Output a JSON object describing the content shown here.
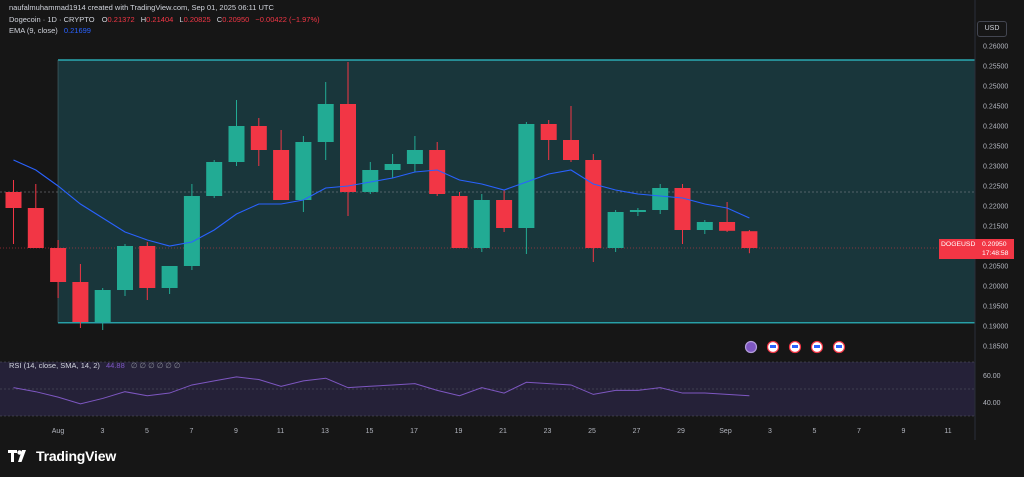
{
  "header": {
    "created_by": "naufalmuhammad1914 created with TradingView.com, Sep 01, 2025 06:11 UTC",
    "symbol": "Dogecoin · 1D · CRYPTO",
    "ohlc": {
      "o_label": "O",
      "o": "0.21372",
      "h_label": "H",
      "h": "0.21404",
      "l_label": "L",
      "l": "0.20825",
      "c_label": "C",
      "c": "0.20950",
      "change": "−0.00422 (−1.97%)"
    },
    "ema_label": "EMA (9, close)",
    "ema_value": "0.21699"
  },
  "currency_button": "USD",
  "price_tag": {
    "symbol": "DOGEUSD",
    "price": "0.20950",
    "countdown": "17:48:58"
  },
  "price_axis": [
    "0.26000",
    "0.25500",
    "0.25000",
    "0.24500",
    "0.24000",
    "0.23500",
    "0.23000",
    "0.22500",
    "0.22000",
    "0.21500",
    "0.21000",
    "0.20500",
    "0.20000",
    "0.19500",
    "0.19000",
    "0.18500"
  ],
  "rsi": {
    "label": "RSI (14, close, SMA, 14, 2)",
    "value": "44.88",
    "placeholders": "∅ ∅ ∅ ∅ ∅ ∅",
    "axis": [
      "60.00",
      "40.00"
    ]
  },
  "time_axis": [
    "Aug",
    "3",
    "5",
    "7",
    "9",
    "11",
    "13",
    "15",
    "17",
    "19",
    "21",
    "23",
    "25",
    "27",
    "29",
    "Sep",
    "3",
    "5",
    "7",
    "9",
    "11"
  ],
  "brand": "TradingView",
  "colors": {
    "up": "#22ab94",
    "down": "#f23645",
    "ema": "#2962ff",
    "channel": "#2ec4cc",
    "rsi": "#7e57c2",
    "background": "#161616",
    "channel_fill": "#1a3c42"
  },
  "chart_data": {
    "type": "candlestick",
    "ylim": [
      0.1835,
      0.262
    ],
    "channel": {
      "upper": 0.2565,
      "lower": 0.1908
    },
    "dashed_level": 0.2235,
    "candles": [
      {
        "x": 0,
        "o": 0.2235,
        "h": 0.2265,
        "l": 0.2105,
        "c": 0.2195
      },
      {
        "x": 1,
        "o": 0.2195,
        "h": 0.2255,
        "l": 0.21,
        "c": 0.2095
      },
      {
        "x": 2,
        "o": 0.2095,
        "h": 0.2115,
        "l": 0.197,
        "c": 0.201
      },
      {
        "x": 3,
        "o": 0.201,
        "h": 0.2055,
        "l": 0.1895,
        "c": 0.191
      },
      {
        "x": 4,
        "o": 0.191,
        "h": 0.1995,
        "l": 0.189,
        "c": 0.199
      },
      {
        "x": 5,
        "o": 0.199,
        "h": 0.2105,
        "l": 0.1975,
        "c": 0.21
      },
      {
        "x": 6,
        "o": 0.21,
        "h": 0.211,
        "l": 0.1965,
        "c": 0.1995
      },
      {
        "x": 7,
        "o": 0.1995,
        "h": 0.205,
        "l": 0.198,
        "c": 0.205
      },
      {
        "x": 8,
        "o": 0.205,
        "h": 0.2255,
        "l": 0.204,
        "c": 0.2225
      },
      {
        "x": 9,
        "o": 0.2225,
        "h": 0.2315,
        "l": 0.222,
        "c": 0.231
      },
      {
        "x": 10,
        "o": 0.231,
        "h": 0.2465,
        "l": 0.23,
        "c": 0.24
      },
      {
        "x": 11,
        "o": 0.24,
        "h": 0.242,
        "l": 0.23,
        "c": 0.234
      },
      {
        "x": 12,
        "o": 0.234,
        "h": 0.239,
        "l": 0.2215,
        "c": 0.2215
      },
      {
        "x": 13,
        "o": 0.2215,
        "h": 0.2375,
        "l": 0.2185,
        "c": 0.236
      },
      {
        "x": 14,
        "o": 0.236,
        "h": 0.251,
        "l": 0.2315,
        "c": 0.2455
      },
      {
        "x": 15,
        "o": 0.2455,
        "h": 0.256,
        "l": 0.2175,
        "c": 0.2235
      },
      {
        "x": 16,
        "o": 0.2235,
        "h": 0.231,
        "l": 0.223,
        "c": 0.229
      },
      {
        "x": 17,
        "o": 0.229,
        "h": 0.233,
        "l": 0.227,
        "c": 0.2305
      },
      {
        "x": 18,
        "o": 0.2305,
        "h": 0.2375,
        "l": 0.2285,
        "c": 0.234
      },
      {
        "x": 19,
        "o": 0.234,
        "h": 0.236,
        "l": 0.2225,
        "c": 0.223
      },
      {
        "x": 20,
        "o": 0.2225,
        "h": 0.2235,
        "l": 0.2095,
        "c": 0.2095
      },
      {
        "x": 21,
        "o": 0.2095,
        "h": 0.223,
        "l": 0.2085,
        "c": 0.2215
      },
      {
        "x": 22,
        "o": 0.2215,
        "h": 0.224,
        "l": 0.2135,
        "c": 0.2145
      },
      {
        "x": 23,
        "o": 0.2145,
        "h": 0.241,
        "l": 0.208,
        "c": 0.2405
      },
      {
        "x": 24,
        "o": 0.2405,
        "h": 0.2415,
        "l": 0.2315,
        "c": 0.2365
      },
      {
        "x": 25,
        "o": 0.2365,
        "h": 0.245,
        "l": 0.231,
        "c": 0.2315
      },
      {
        "x": 26,
        "o": 0.2315,
        "h": 0.233,
        "l": 0.206,
        "c": 0.2095
      },
      {
        "x": 27,
        "o": 0.2095,
        "h": 0.219,
        "l": 0.2085,
        "c": 0.2185
      },
      {
        "x": 28,
        "o": 0.2185,
        "h": 0.2195,
        "l": 0.2175,
        "c": 0.219
      },
      {
        "x": 29,
        "o": 0.219,
        "h": 0.2255,
        "l": 0.218,
        "c": 0.2245
      },
      {
        "x": 30,
        "o": 0.2245,
        "h": 0.2255,
        "l": 0.2105,
        "c": 0.214
      },
      {
        "x": 31,
        "o": 0.214,
        "h": 0.2165,
        "l": 0.213,
        "c": 0.216
      },
      {
        "x": 32,
        "o": 0.216,
        "h": 0.221,
        "l": 0.2135,
        "c": 0.2138
      },
      {
        "x": 33,
        "o": 0.2137,
        "h": 0.214,
        "l": 0.2082,
        "c": 0.2095
      }
    ],
    "ema": [
      0.2315,
      0.229,
      0.225,
      0.2205,
      0.217,
      0.2135,
      0.2115,
      0.21,
      0.211,
      0.214,
      0.218,
      0.2205,
      0.2205,
      0.2215,
      0.2245,
      0.225,
      0.226,
      0.227,
      0.2285,
      0.229,
      0.2265,
      0.2255,
      0.224,
      0.226,
      0.228,
      0.229,
      0.2255,
      0.224,
      0.223,
      0.2225,
      0.222,
      0.2205,
      0.2195,
      0.217
    ],
    "rsi_ylim": [
      30,
      70
    ],
    "rsi_values": [
      51,
      48,
      44,
      39,
      43,
      48,
      45,
      47,
      53,
      56,
      59,
      57,
      52,
      56,
      58,
      51,
      52,
      53,
      54,
      49,
      45,
      51,
      47,
      55,
      54,
      53,
      46,
      49,
      49,
      51,
      47,
      47,
      46,
      45
    ]
  }
}
